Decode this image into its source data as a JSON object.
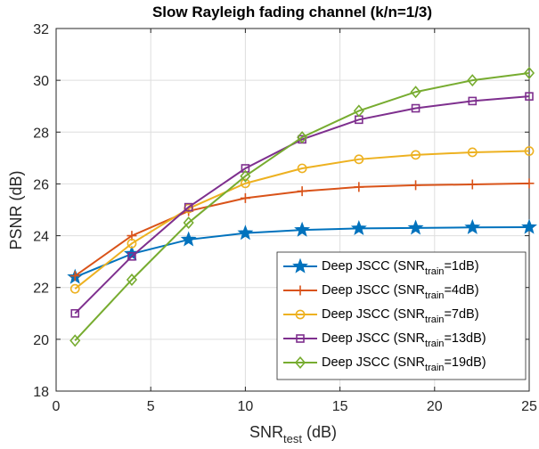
{
  "chart_data": {
    "type": "line",
    "title": "Slow Rayleigh fading channel (k/n=1/3)",
    "xlabel": {
      "main": "SNR",
      "sub": "test",
      "tail": " (dB)"
    },
    "ylabel": "PSNR (dB)",
    "xlim": [
      0,
      25
    ],
    "ylim": [
      18,
      32
    ],
    "xticks": [
      0,
      5,
      10,
      15,
      20,
      25
    ],
    "yticks": [
      18,
      20,
      22,
      24,
      26,
      28,
      30,
      32
    ],
    "grid": true,
    "legend_position": "bottom-right",
    "x": [
      1,
      4,
      7,
      10,
      13,
      16,
      19,
      22,
      25
    ],
    "series": [
      {
        "name": "Deep JSCC (SNR",
        "name_sub": "train",
        "name_tail": "=1dB)",
        "color": "#0072bd",
        "marker": "star",
        "values": [
          22.4,
          23.3,
          23.85,
          24.1,
          24.22,
          24.28,
          24.3,
          24.32,
          24.33
        ]
      },
      {
        "name": "Deep JSCC (SNR",
        "name_sub": "train",
        "name_tail": "=4dB)",
        "color": "#d95319",
        "marker": "plus",
        "values": [
          22.45,
          24.0,
          24.95,
          25.45,
          25.72,
          25.88,
          25.95,
          25.98,
          26.02
        ]
      },
      {
        "name": "Deep JSCC (SNR",
        "name_sub": "train",
        "name_tail": "=7dB)",
        "color": "#edb120",
        "marker": "circle",
        "values": [
          21.95,
          23.7,
          25.05,
          26.02,
          26.6,
          26.95,
          27.12,
          27.22,
          27.27
        ]
      },
      {
        "name": "Deep JSCC (SNR",
        "name_sub": "train",
        "name_tail": "=13dB)",
        "color": "#7e2f8e",
        "marker": "square",
        "values": [
          21.0,
          23.2,
          25.1,
          26.6,
          27.72,
          28.48,
          28.92,
          29.2,
          29.38
        ]
      },
      {
        "name": "Deep JSCC (SNR",
        "name_sub": "train",
        "name_tail": "=19dB)",
        "color": "#77ac30",
        "marker": "diamond",
        "values": [
          19.95,
          22.3,
          24.5,
          26.3,
          27.8,
          28.82,
          29.55,
          30.0,
          30.28
        ]
      }
    ]
  }
}
